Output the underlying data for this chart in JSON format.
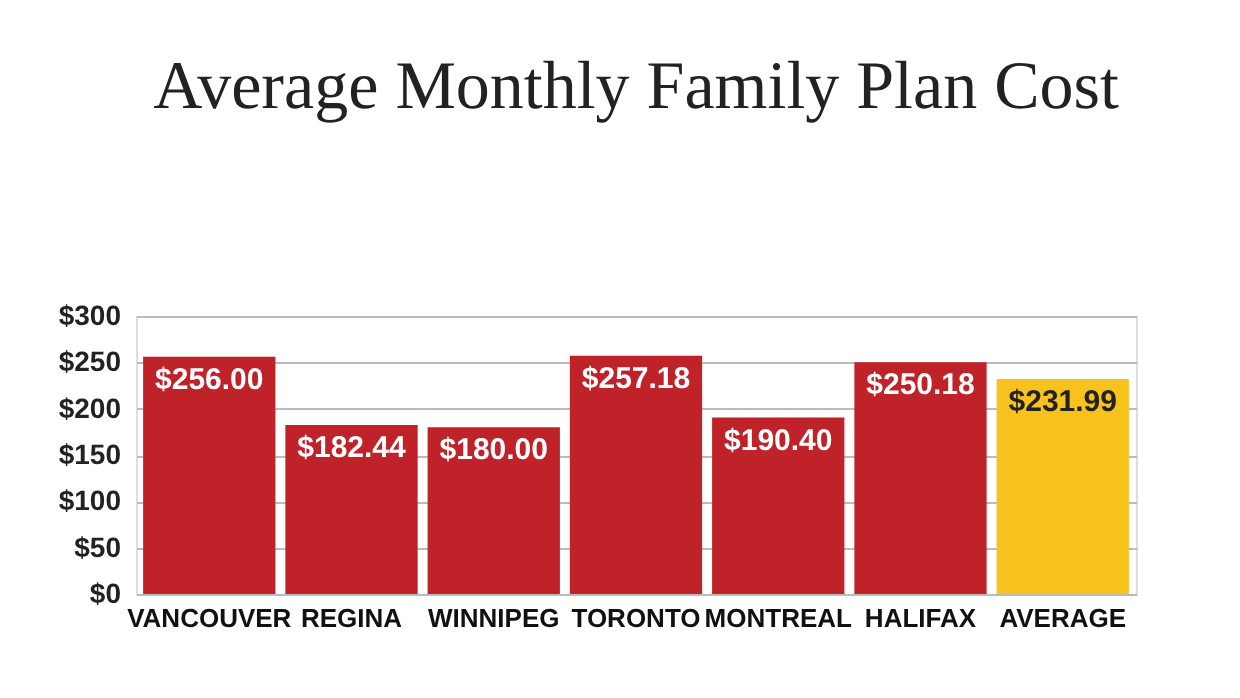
{
  "chart_data": {
    "type": "bar",
    "title": "Average Monthly Family Plan Cost",
    "categories": [
      "VANCOUVER",
      "REGINA",
      "WINNIPEG",
      "TORONTO",
      "MONTREAL",
      "HALIFAX",
      "AVERAGE"
    ],
    "values": [
      256.0,
      182.44,
      180.0,
      257.18,
      190.4,
      250.18,
      231.99
    ],
    "value_labels": [
      "$256.00",
      "$182.44",
      "$180.00",
      "$257.18",
      "$190.40",
      "$250.18",
      "$231.99"
    ],
    "colors": [
      "#c0222a",
      "#c0222a",
      "#c0222a",
      "#c0222a",
      "#c0222a",
      "#c0222a",
      "#f7c21b"
    ],
    "ylim": [
      0,
      300
    ],
    "yticks": [
      {
        "value": 0,
        "label": "$0"
      },
      {
        "value": 50,
        "label": "$50"
      },
      {
        "value": 100,
        "label": "$100"
      },
      {
        "value": 150,
        "label": "$150"
      },
      {
        "value": 200,
        "label": "$200"
      },
      {
        "value": 250,
        "label": "$250"
      },
      {
        "value": 300,
        "label": "$300"
      }
    ],
    "grid": "y"
  }
}
